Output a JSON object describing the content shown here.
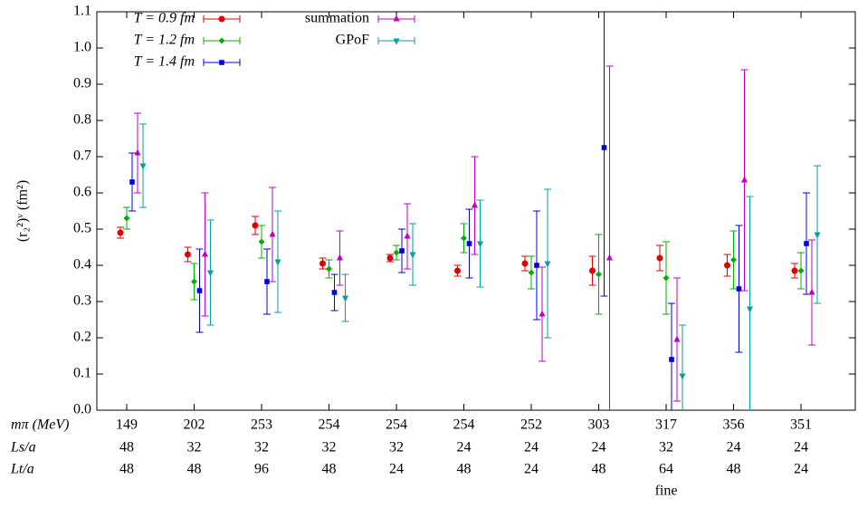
{
  "chart_data": {
    "type": "errorbar",
    "y_label": "(r₂²)ᵛ (fm²)",
    "categories": [
      149,
      202,
      253,
      254,
      254,
      254,
      252,
      303,
      317,
      356,
      351
    ],
    "category_rows": [
      {
        "label": "mπ (MeV)"
      },
      {
        "label": "Ls/a",
        "values": [
          48,
          32,
          32,
          32,
          32,
          24,
          24,
          24,
          32,
          24,
          24
        ]
      },
      {
        "label": "Lt/a",
        "values": [
          48,
          48,
          96,
          48,
          24,
          48,
          24,
          48,
          64,
          48,
          24
        ]
      }
    ],
    "category_notes": [
      null,
      null,
      null,
      null,
      null,
      null,
      null,
      null,
      "fine",
      null,
      null
    ],
    "ylim": [
      0,
      1.1
    ],
    "yticks": [
      {
        "value": 0,
        "label": "0.0"
      },
      0.1,
      0.2,
      0.3,
      0.4,
      0.5,
      0.6,
      0.7,
      0.8,
      0.9,
      {
        "value": 1,
        "label": "1.0"
      },
      1.1
    ],
    "legend_position": "upper left",
    "series": [
      {
        "name": "T = 0.9 fm",
        "color": "#e00000",
        "marker": "circle",
        "values": [
          0.49,
          0.43,
          0.51,
          0.405,
          0.42,
          0.385,
          0.405,
          0.385,
          0.42,
          0.4,
          0.385
        ],
        "errors": [
          0.015,
          0.02,
          0.025,
          0.015,
          0.01,
          0.015,
          0.02,
          0.04,
          0.035,
          0.03,
          0.02
        ]
      },
      {
        "name": "T = 1.2 fm",
        "color": "#00b000",
        "marker": "diamond",
        "values": [
          0.53,
          0.355,
          0.465,
          0.39,
          0.435,
          0.475,
          0.38,
          0.375,
          0.365,
          0.415,
          0.385
        ],
        "errors": [
          0.03,
          0.05,
          0.045,
          0.025,
          0.02,
          0.04,
          0.045,
          0.11,
          0.1,
          0.08,
          0.05
        ]
      },
      {
        "name": "T = 1.4 fm",
        "color": "#0000e0",
        "marker": "square",
        "values": [
          0.63,
          0.33,
          0.355,
          0.325,
          0.44,
          0.46,
          0.4,
          0.725,
          0.14,
          0.335,
          0.46
        ],
        "errors": [
          0.08,
          0.115,
          0.09,
          0.05,
          0.06,
          0.095,
          0.15,
          0.41,
          0.155,
          0.175,
          0.14
        ]
      },
      {
        "name": "summation",
        "color": "#c000c0",
        "marker": "triangle-up",
        "values": [
          0.71,
          0.43,
          0.485,
          0.42,
          0.48,
          0.565,
          0.265,
          0.42,
          0.195,
          0.635,
          0.325
        ],
        "errors": [
          0.11,
          0.17,
          0.13,
          0.075,
          0.09,
          0.135,
          0.13,
          0.53,
          0.17,
          0.305,
          0.145
        ]
      },
      {
        "name": "GPoF",
        "color": "#00a0a0",
        "marker": "triangle-down",
        "values": [
          0.675,
          0.38,
          0.41,
          0.31,
          0.43,
          0.46,
          0.405,
          null,
          0.095,
          0.28,
          0.485
        ],
        "errors": [
          0.115,
          0.145,
          0.14,
          0.065,
          0.085,
          0.12,
          0.205,
          null,
          0.14,
          0.31,
          0.19
        ]
      }
    ]
  }
}
